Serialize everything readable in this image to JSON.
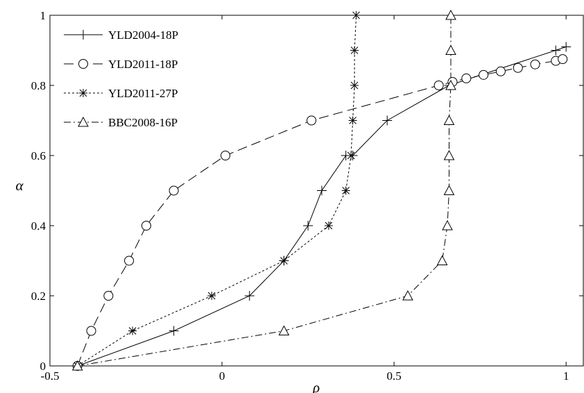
{
  "chart_data": {
    "type": "line",
    "xlabel": "ρ",
    "ylabel": "α",
    "xlim": [
      -0.5,
      1.05
    ],
    "ylim": [
      0,
      1
    ],
    "xticks": [
      -0.5,
      0,
      0.5,
      1
    ],
    "xtick_labels": [
      "-0.5",
      "0",
      "0.5",
      "1"
    ],
    "yticks": [
      0,
      0.2,
      0.4,
      0.6,
      0.8,
      1
    ],
    "ytick_labels": [
      "0",
      "0.2",
      "0.4",
      "0.6",
      "0.8",
      "1"
    ],
    "grid": false,
    "legend_position": "top-left",
    "series": [
      {
        "name": "YLD2004-18P",
        "line_style": "solid",
        "marker": "plus",
        "x": [
          -0.42,
          -0.14,
          0.08,
          0.18,
          0.25,
          0.29,
          0.36,
          0.38,
          0.48,
          0.66,
          0.97,
          1.0
        ],
        "y": [
          0.0,
          0.1,
          0.2,
          0.3,
          0.4,
          0.5,
          0.6,
          0.6,
          0.7,
          0.8,
          0.9,
          0.91
        ]
      },
      {
        "name": "YLD2011-18P",
        "line_style": "long-dash",
        "marker": "circle",
        "x": [
          -0.42,
          -0.38,
          -0.33,
          -0.27,
          -0.22,
          -0.14,
          0.01,
          0.26,
          0.63,
          0.67,
          0.71,
          0.76,
          0.81,
          0.86,
          0.91,
          0.97,
          0.99
        ],
        "y": [
          0.0,
          0.1,
          0.2,
          0.3,
          0.4,
          0.5,
          0.6,
          0.7,
          0.8,
          0.81,
          0.82,
          0.83,
          0.84,
          0.85,
          0.86,
          0.87,
          0.875
        ]
      },
      {
        "name": "YLD2011-27P",
        "line_style": "dotted",
        "marker": "asterisk",
        "x": [
          -0.42,
          -0.26,
          -0.03,
          0.18,
          0.31,
          0.36,
          0.375,
          0.38,
          0.385,
          0.385,
          0.39
        ],
        "y": [
          0.0,
          0.1,
          0.2,
          0.3,
          0.4,
          0.5,
          0.6,
          0.7,
          0.8,
          0.9,
          1.0
        ]
      },
      {
        "name": "BBC2008-16P",
        "line_style": "dash-dot",
        "marker": "triangle",
        "x": [
          -0.42,
          0.18,
          0.54,
          0.64,
          0.655,
          0.66,
          0.66,
          0.66,
          0.665,
          0.665,
          0.665
        ],
        "y": [
          0.0,
          0.1,
          0.2,
          0.3,
          0.4,
          0.5,
          0.6,
          0.7,
          0.8,
          0.9,
          1.0
        ]
      }
    ]
  }
}
